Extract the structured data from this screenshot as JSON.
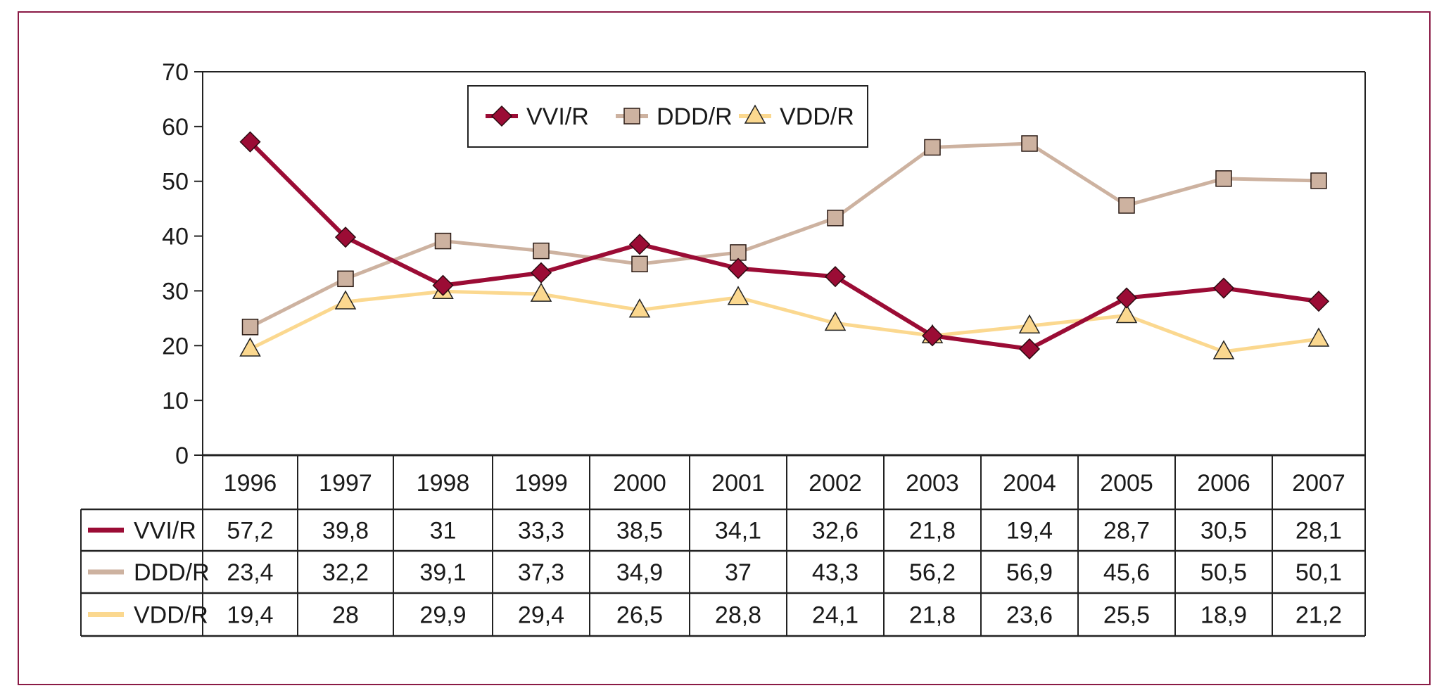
{
  "chart_data": {
    "type": "line",
    "title": "",
    "xlabel": "",
    "ylabel": "",
    "ylim": [
      0,
      70
    ],
    "yticks": [
      "0",
      "10",
      "20",
      "30",
      "40",
      "50",
      "60",
      "70"
    ],
    "categories": [
      "1996",
      "1997",
      "1998",
      "1999",
      "2000",
      "2001",
      "2002",
      "2003",
      "2004",
      "2005",
      "2006",
      "2007"
    ],
    "grid": false,
    "legend_placement": "top-center",
    "series": [
      {
        "name": "VVI/R",
        "color": "#9b0c35",
        "marker": "diamond",
        "values": [
          57.2,
          39.8,
          31,
          33.3,
          38.5,
          34.1,
          32.6,
          21.8,
          19.4,
          28.7,
          30.5,
          28.1
        ],
        "labels": [
          "57,2",
          "39,8",
          "31",
          "33,3",
          "38,5",
          "34,1",
          "32,6",
          "21,8",
          "19,4",
          "28,7",
          "30,5",
          "28,1"
        ]
      },
      {
        "name": "DDD/R",
        "color": "#cdb2a0",
        "marker": "square",
        "values": [
          23.4,
          32.2,
          39.1,
          37.3,
          34.9,
          37,
          43.3,
          56.2,
          56.9,
          45.6,
          50.5,
          50.1
        ],
        "labels": [
          "23,4",
          "32,2",
          "39,1",
          "37,3",
          "34,9",
          "37",
          "43,3",
          "56,2",
          "56,9",
          "45,6",
          "50,5",
          "50,1"
        ]
      },
      {
        "name": "VDD/R",
        "color": "#fbd88f",
        "marker": "triangle",
        "values": [
          19.4,
          28,
          29.9,
          29.4,
          26.5,
          28.8,
          24.1,
          21.8,
          23.6,
          25.5,
          18.9,
          21.2
        ],
        "labels": [
          "19,4",
          "28",
          "29,9",
          "29,4",
          "26,5",
          "28,8",
          "24,1",
          "21,8",
          "23,6",
          "25,5",
          "18,9",
          "21,2"
        ]
      }
    ],
    "data_table": true,
    "frame_color": "#8a1a45"
  }
}
